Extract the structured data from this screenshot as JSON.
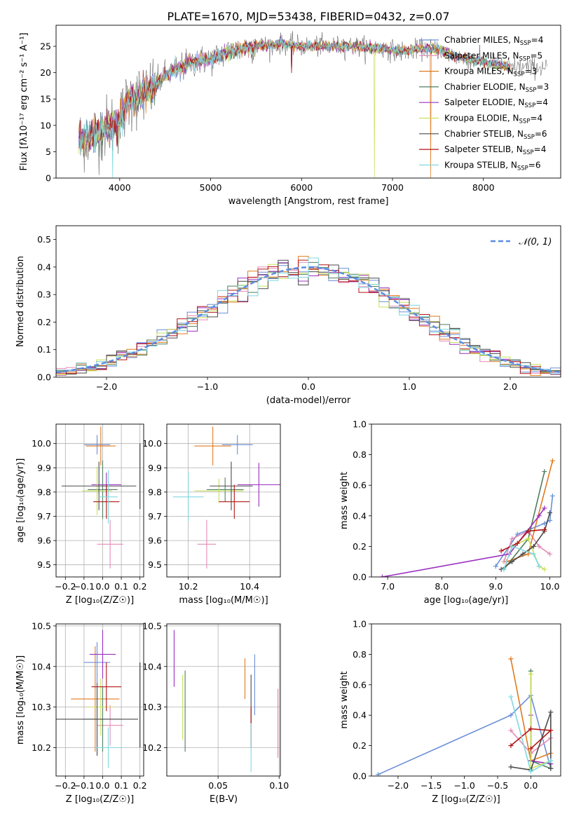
{
  "figure": {
    "title": "PLATE=1670, MJD=53438, FIBERID=0432, z=0.07"
  },
  "legend_entries": [
    {
      "label": "Chabrier MILES, N_SSP=4",
      "base": "Chabrier MILES, N",
      "sub": "SSP",
      "n": "=4",
      "color": "#6a8fd8"
    },
    {
      "label": "Salpeter MILES, N_SSP=5",
      "base": "Salpeter MILES, N",
      "sub": "SSP",
      "n": "=5",
      "color": "#e48bb6"
    },
    {
      "label": "Kroupa MILES, N_SSP=3",
      "base": "Kroupa MILES, N",
      "sub": "SSP",
      "n": "=3",
      "color": "#e07a1f"
    },
    {
      "label": "Chabrier ELODIE, N_SSP=3",
      "base": "Chabrier ELODIE, N",
      "sub": "SSP",
      "n": "=3",
      "color": "#4f7f5f"
    },
    {
      "label": "Salpeter ELODIE, N_SSP=4",
      "base": "Salpeter ELODIE, N",
      "sub": "SSP",
      "n": "=4",
      "color": "#9b30c0"
    },
    {
      "label": "Kroupa ELODIE, N_SSP=4",
      "base": "Kroupa ELODIE, N",
      "sub": "SSP",
      "n": "=4",
      "color": "#c8e05a"
    },
    {
      "label": "Chabrier STELIB, N_SSP=6",
      "base": "Chabrier STELIB, N",
      "sub": "SSP",
      "n": "=6",
      "color": "#4a4a4a"
    },
    {
      "label": "Salpeter STELIB, N_SSP=4",
      "base": "Salpeter STELIB, N",
      "sub": "SSP",
      "n": "=4",
      "color": "#b01515"
    },
    {
      "label": "Kroupa STELIB, N_SSP=6",
      "base": "Kroupa STELIB, N",
      "sub": "SSP",
      "n": "=6",
      "color": "#7fd8e0"
    }
  ],
  "chart_data": [
    {
      "id": "spectrum",
      "type": "line",
      "xlabel": "wavelength [Angstrom, rest frame]",
      "ylabel": "Flux [fλ10⁻¹⁷ erg cm⁻² s⁻¹ A⁻¹]",
      "xlim": [
        3300,
        8850
      ],
      "ylim": [
        0,
        29
      ],
      "xticks": [
        4000,
        5000,
        6000,
        7000,
        8000
      ],
      "yticks": [
        0,
        5,
        10,
        15,
        20,
        25
      ],
      "continuum": {
        "x": [
          3550,
          3800,
          4000,
          4100,
          4300,
          4500,
          4800,
          5000,
          5200,
          5500,
          5800,
          6000,
          6300,
          6600,
          6900,
          7100,
          7300,
          7500,
          7700,
          8000,
          8300,
          8700
        ],
        "y": [
          7,
          9,
          11,
          15,
          16,
          19.5,
          22,
          22.5,
          24,
          25,
          25.5,
          25,
          25,
          25,
          24.5,
          24,
          24.5,
          24.5,
          23,
          22,
          21,
          21
        ]
      },
      "drops": [
        {
          "x": 3920,
          "y": 0
        },
        {
          "x": 6800,
          "y": 0
        },
        {
          "x": 7420,
          "y": 0
        },
        {
          "x": 5890,
          "y": 20
        },
        {
          "x": 3970,
          "y": 6
        }
      ]
    },
    {
      "id": "residuals",
      "type": "histogram",
      "xlabel": "(data-model)/error",
      "ylabel": "Normed distribution",
      "xlim": [
        -2.5,
        2.5
      ],
      "ylim": [
        0,
        0.55
      ],
      "xticks": [
        -2,
        -1,
        0,
        1,
        2
      ],
      "yticks": [
        0.0,
        0.1,
        0.2,
        0.3,
        0.4,
        0.5
      ],
      "reference_label": "𝒩(0, 1)",
      "reference_color": "#5b8be0",
      "bin_width": 0.1
    },
    {
      "id": "age-vs-Z",
      "type": "scatter",
      "xlabel": "Z [log₁₀(Z/Z☉)]",
      "ylabel": "age  [log₁₀(age/yr)]",
      "xlim": [
        -0.25,
        0.22
      ],
      "ylim": [
        9.45,
        10.08
      ],
      "xticks": [
        -0.2,
        -0.1,
        0.0,
        0.1,
        0.2
      ],
      "yticks": [
        9.5,
        9.6,
        9.7,
        9.8,
        9.9,
        10.0
      ],
      "points": [
        {
          "x": -0.03,
          "y": 9.995,
          "xerr": 0.07,
          "yerr": 0.04
        },
        {
          "x": 0.04,
          "y": 9.585,
          "xerr": 0.07,
          "yerr": 0.1
        },
        {
          "x": -0.01,
          "y": 9.99,
          "xerr": 0.08,
          "yerr": 0.08
        },
        {
          "x": 0.0,
          "y": 9.81,
          "xerr": 0.08,
          "yerr": 0.12
        },
        {
          "x": 0.02,
          "y": 9.83,
          "xerr": 0.08,
          "yerr": 0.05
        },
        {
          "x": -0.03,
          "y": 9.805,
          "xerr": 0.08,
          "yerr": 0.1
        },
        {
          "x": -0.02,
          "y": 9.825,
          "xerr": 0.2,
          "yerr": 0.1
        },
        {
          "x": 0.02,
          "y": 9.76,
          "xerr": 0.07,
          "yerr": 0.07
        },
        {
          "x": 0.03,
          "y": 9.78,
          "xerr": 0.05,
          "yerr": 0.11
        }
      ],
      "edge_bars": [
        {
          "x": 0.2,
          "y0": 9.73,
          "y1": 10.0
        }
      ]
    },
    {
      "id": "age-vs-mass",
      "type": "scatter",
      "xlabel": "mass [log₁₀(M/M☉)]",
      "ylabel": "",
      "xlim": [
        10.13,
        10.5
      ],
      "ylim": [
        9.45,
        10.08
      ],
      "xticks": [
        10.2,
        10.4
      ],
      "yticks": [
        9.5,
        9.6,
        9.7,
        9.8,
        9.9,
        10.0
      ],
      "points": [
        {
          "x": 10.36,
          "y": 9.995,
          "xerr": 0.05,
          "yerr": 0.04
        },
        {
          "x": 10.26,
          "y": 9.585,
          "xerr": 0.03,
          "yerr": 0.1
        },
        {
          "x": 10.28,
          "y": 9.99,
          "xerr": 0.06,
          "yerr": 0.08
        },
        {
          "x": 10.32,
          "y": 9.81,
          "xerr": 0.06,
          "yerr": 0.05
        },
        {
          "x": 10.43,
          "y": 9.83,
          "xerr": 0.07,
          "yerr": 0.09
        },
        {
          "x": 10.3,
          "y": 9.805,
          "xerr": 0.08,
          "yerr": 0.05
        },
        {
          "x": 10.34,
          "y": 9.825,
          "xerr": 0.07,
          "yerr": 0.1
        },
        {
          "x": 10.35,
          "y": 9.76,
          "xerr": 0.05,
          "yerr": 0.07
        },
        {
          "x": 10.2,
          "y": 9.78,
          "xerr": 0.05,
          "yerr": 0.1
        }
      ]
    },
    {
      "id": "weight-vs-age",
      "type": "line",
      "xlabel": "age  [log₁₀(age/yr)]",
      "ylabel": "mass weight",
      "xlim": [
        6.7,
        10.2
      ],
      "ylim": [
        0,
        1.0
      ],
      "xticks": [
        7,
        8,
        9,
        10
      ],
      "yticks": [
        0.0,
        0.2,
        0.4,
        0.6,
        0.8,
        1.0
      ],
      "series": [
        {
          "x": [
            9.0,
            9.4,
            9.9,
            10.0,
            10.05
          ],
          "y": [
            0.07,
            0.28,
            0.35,
            0.37,
            0.53
          ]
        },
        {
          "x": [
            9.15,
            9.3,
            9.6,
            9.8,
            10.0
          ],
          "y": [
            0.1,
            0.25,
            0.3,
            0.2,
            0.15
          ]
        },
        {
          "x": [
            9.2,
            9.6,
            10.05
          ],
          "y": [
            0.1,
            0.15,
            0.76
          ]
        },
        {
          "x": [
            9.15,
            9.6,
            9.9
          ],
          "y": [
            0.05,
            0.25,
            0.69
          ]
        },
        {
          "x": [
            6.9,
            9.25,
            9.8,
            9.9
          ],
          "y": [
            0.0,
            0.15,
            0.4,
            0.45
          ]
        },
        {
          "x": [
            9.3,
            9.6,
            9.8,
            9.9
          ],
          "y": [
            0.2,
            0.25,
            0.07,
            0.05
          ]
        },
        {
          "x": [
            9.1,
            9.3,
            9.5,
            9.7,
            9.9,
            10.0
          ],
          "y": [
            0.05,
            0.1,
            0.15,
            0.2,
            0.3,
            0.42
          ]
        },
        {
          "x": [
            9.1,
            9.4,
            9.6,
            9.9
          ],
          "y": [
            0.17,
            0.22,
            0.3,
            0.31
          ]
        },
        {
          "x": [
            9.15,
            9.3,
            9.7,
            9.8
          ],
          "y": [
            0.05,
            0.2,
            0.15,
            0.07
          ]
        }
      ]
    },
    {
      "id": "mass-vs-Z",
      "type": "scatter",
      "xlabel": "Z [log₁₀(Z/Z☉)]",
      "ylabel": "mass [log₁₀(M/M☉)]",
      "xlim": [
        -0.25,
        0.22
      ],
      "ylim": [
        10.13,
        10.505
      ],
      "xticks": [
        -0.2,
        -0.1,
        0.0,
        0.1,
        0.2
      ],
      "yticks": [
        10.2,
        10.3,
        10.4,
        10.5
      ],
      "points": [
        {
          "x": -0.03,
          "y": 10.41,
          "xerr": 0.07,
          "yerr": 0.05
        },
        {
          "x": 0.04,
          "y": 10.255,
          "xerr": 0.07,
          "yerr": 0.05
        },
        {
          "x": -0.04,
          "y": 10.32,
          "xerr": 0.13,
          "yerr": 0.13
        },
        {
          "x": 0.0,
          "y": 10.27,
          "xerr": 0.1,
          "yerr": 0.08
        },
        {
          "x": 0.0,
          "y": 10.43,
          "xerr": 0.07,
          "yerr": 0.06
        },
        {
          "x": -0.01,
          "y": 10.3,
          "xerr": 0.07,
          "yerr": 0.07
        },
        {
          "x": -0.03,
          "y": 10.27,
          "xerr": 0.22,
          "yerr": 0.09
        },
        {
          "x": 0.02,
          "y": 10.35,
          "xerr": 0.08,
          "yerr": 0.06
        },
        {
          "x": 0.03,
          "y": 10.2,
          "xerr": 0.07,
          "yerr": 0.05
        }
      ],
      "edge_bars": [
        {
          "x": 0.2,
          "y0": 10.2,
          "y1": 10.41
        }
      ]
    },
    {
      "id": "mass-vs-EBV",
      "type": "scatter",
      "xlabel": "E(B-V)",
      "ylabel": "",
      "xlim": [
        0.008,
        0.101
      ],
      "ylim": [
        10.13,
        10.505
      ],
      "xticks": [
        0.05,
        0.1
      ],
      "tick_labels": [
        "0.05",
        "0.10"
      ],
      "yticks": [
        10.2,
        10.3,
        10.4,
        10.5
      ],
      "points": [
        {
          "x": 0.08,
          "y": 10.355,
          "yerr": 0.075
        },
        {
          "x": 0.099,
          "y": 10.26,
          "yerr": 0.085
        },
        {
          "x": 0.072,
          "y": 10.37,
          "yerr": 0.05
        },
        {
          "x": 0.023,
          "y": 10.29,
          "yerr": 0.1
        },
        {
          "x": 0.014,
          "y": 10.42,
          "yerr": 0.07
        },
        {
          "x": 0.021,
          "y": 10.3,
          "yerr": 0.08
        },
        {
          "x": 0.077,
          "y": 10.32,
          "yerr": 0.06
        },
        {
          "x": 0.077,
          "y": 10.25,
          "yerr": 0.05
        },
        {
          "x": 0.077,
          "y": 10.2,
          "yerr": 0.06
        }
      ]
    },
    {
      "id": "weight-vs-Z",
      "type": "line",
      "xlabel": "Z [log₁₀(Z/Z☉)]",
      "ylabel": "mass weight",
      "xlim": [
        -2.4,
        0.45
      ],
      "ylim": [
        0,
        1.0
      ],
      "xticks": [
        -2.0,
        -1.5,
        -1.0,
        -0.5,
        0.0
      ],
      "yticks": [
        0.0,
        0.2,
        0.4,
        0.6,
        0.8,
        1.0
      ],
      "series": [
        {
          "x": [
            -2.3,
            -0.3,
            0.0,
            0.3
          ],
          "y": [
            0.01,
            0.4,
            0.53,
            0.05
          ]
        },
        {
          "x": [
            -0.3,
            0.0,
            0.3
          ],
          "y": [
            0.3,
            0.15,
            0.25
          ]
        },
        {
          "x": [
            -0.3,
            0.0,
            0.3
          ],
          "y": [
            0.77,
            0.1,
            0.15
          ]
        },
        {
          "x": [
            0.0,
            0.0,
            0.3
          ],
          "y": [
            0.69,
            0.1,
            0.05
          ]
        },
        {
          "x": [
            0.0,
            0.0,
            0.3
          ],
          "y": [
            0.4,
            0.1,
            0.08
          ]
        },
        {
          "x": [
            0.0,
            0.0,
            0.3
          ],
          "y": [
            0.67,
            0.05,
            0.1
          ]
        },
        {
          "x": [
            -0.3,
            0.0,
            0.3,
            0.3
          ],
          "y": [
            0.06,
            0.04,
            0.42,
            0.05
          ]
        },
        {
          "x": [
            -0.3,
            0.0,
            0.3,
            0.0
          ],
          "y": [
            0.2,
            0.31,
            0.3,
            0.18
          ]
        },
        {
          "x": [
            -0.3,
            0.0,
            0.3
          ],
          "y": [
            0.52,
            0.03,
            0.1
          ]
        }
      ]
    }
  ]
}
